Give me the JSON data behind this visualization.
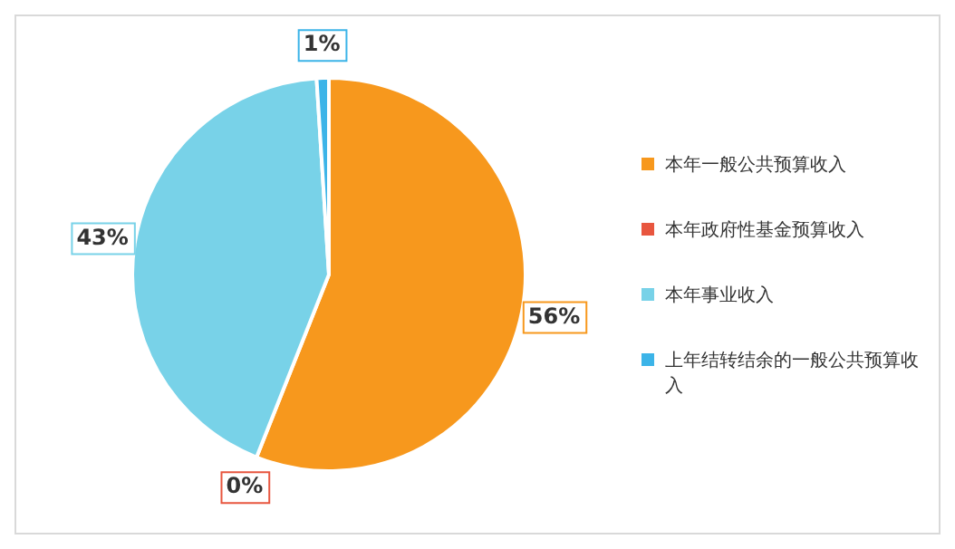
{
  "chart_data": {
    "type": "pie",
    "categories": [
      "本年一般公共预算收入",
      "本年政府性基金预算收入",
      "本年事业收入",
      "上年结转结余的一般公共预算收入"
    ],
    "values": [
      56,
      0,
      43,
      1
    ],
    "colors": [
      "#f7981d",
      "#e8563f",
      "#78d2e8",
      "#3cb4e8"
    ],
    "value_labels": [
      "56%",
      "0%",
      "43%",
      "1%"
    ],
    "legend": "right"
  }
}
